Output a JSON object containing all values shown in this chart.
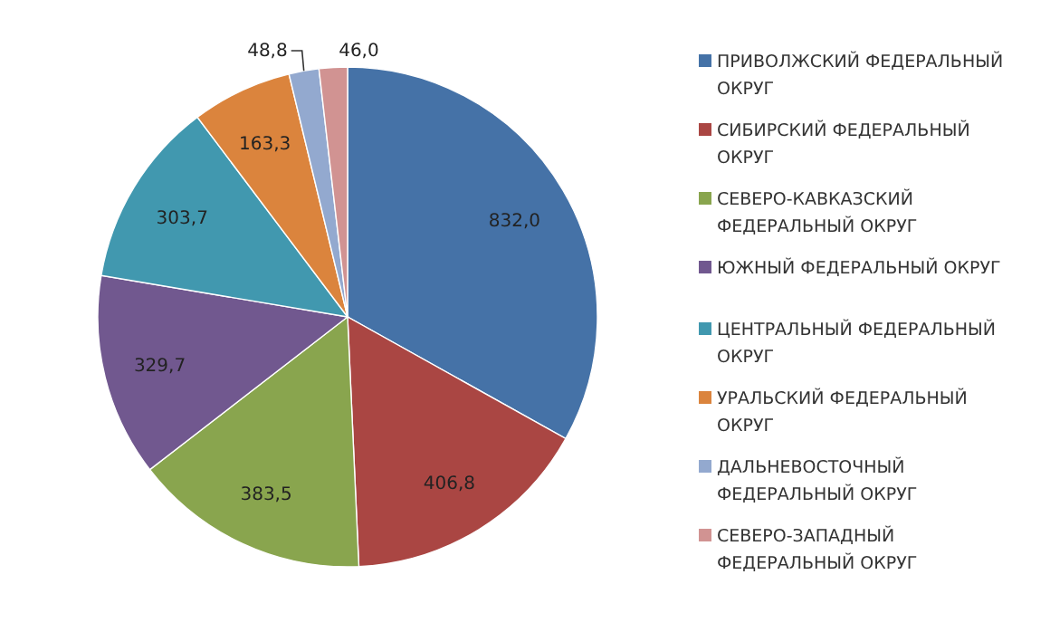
{
  "chart_data": {
    "type": "pie",
    "categories": [
      "ПРИВОЛЖСКИЙ ФЕДЕРАЛЬНЫЙ ОКРУГ",
      "СИБИРСКИЙ ФЕДЕРАЛЬНЫЙ ОКРУГ",
      "СЕВЕРО-КАВКАЗСКИЙ ФЕДЕРАЛЬНЫЙ ОКРУГ",
      "ЮЖНЫЙ ФЕДЕРАЛЬНЫЙ ОКРУГ",
      "ЦЕНТРАЛЬНЫЙ ФЕДЕРАЛЬНЫЙ ОКРУГ",
      "УРАЛЬСКИЙ ФЕДЕРАЛЬНЫЙ ОКРУГ",
      "ДАЛЬНЕВОСТОЧНЫЙ ФЕДЕРАЛЬНЫЙ ОКРУГ",
      "СЕВЕРО-ЗАПАДНЫЙ ФЕДЕРАЛЬНЫЙ ОКРУГ"
    ],
    "values": [
      832.0,
      406.8,
      383.5,
      329.7,
      303.7,
      163.3,
      48.8,
      46.0
    ],
    "value_labels": [
      "832,0",
      "406,8",
      "383,5",
      "329,7",
      "303,7",
      "163,3",
      "48,8",
      "46,0"
    ],
    "colors": [
      "#4572a7",
      "#aa4643",
      "#89a54e",
      "#71588f",
      "#4198af",
      "#db843d",
      "#93a9cf",
      "#d19392"
    ],
    "legend": "right"
  }
}
